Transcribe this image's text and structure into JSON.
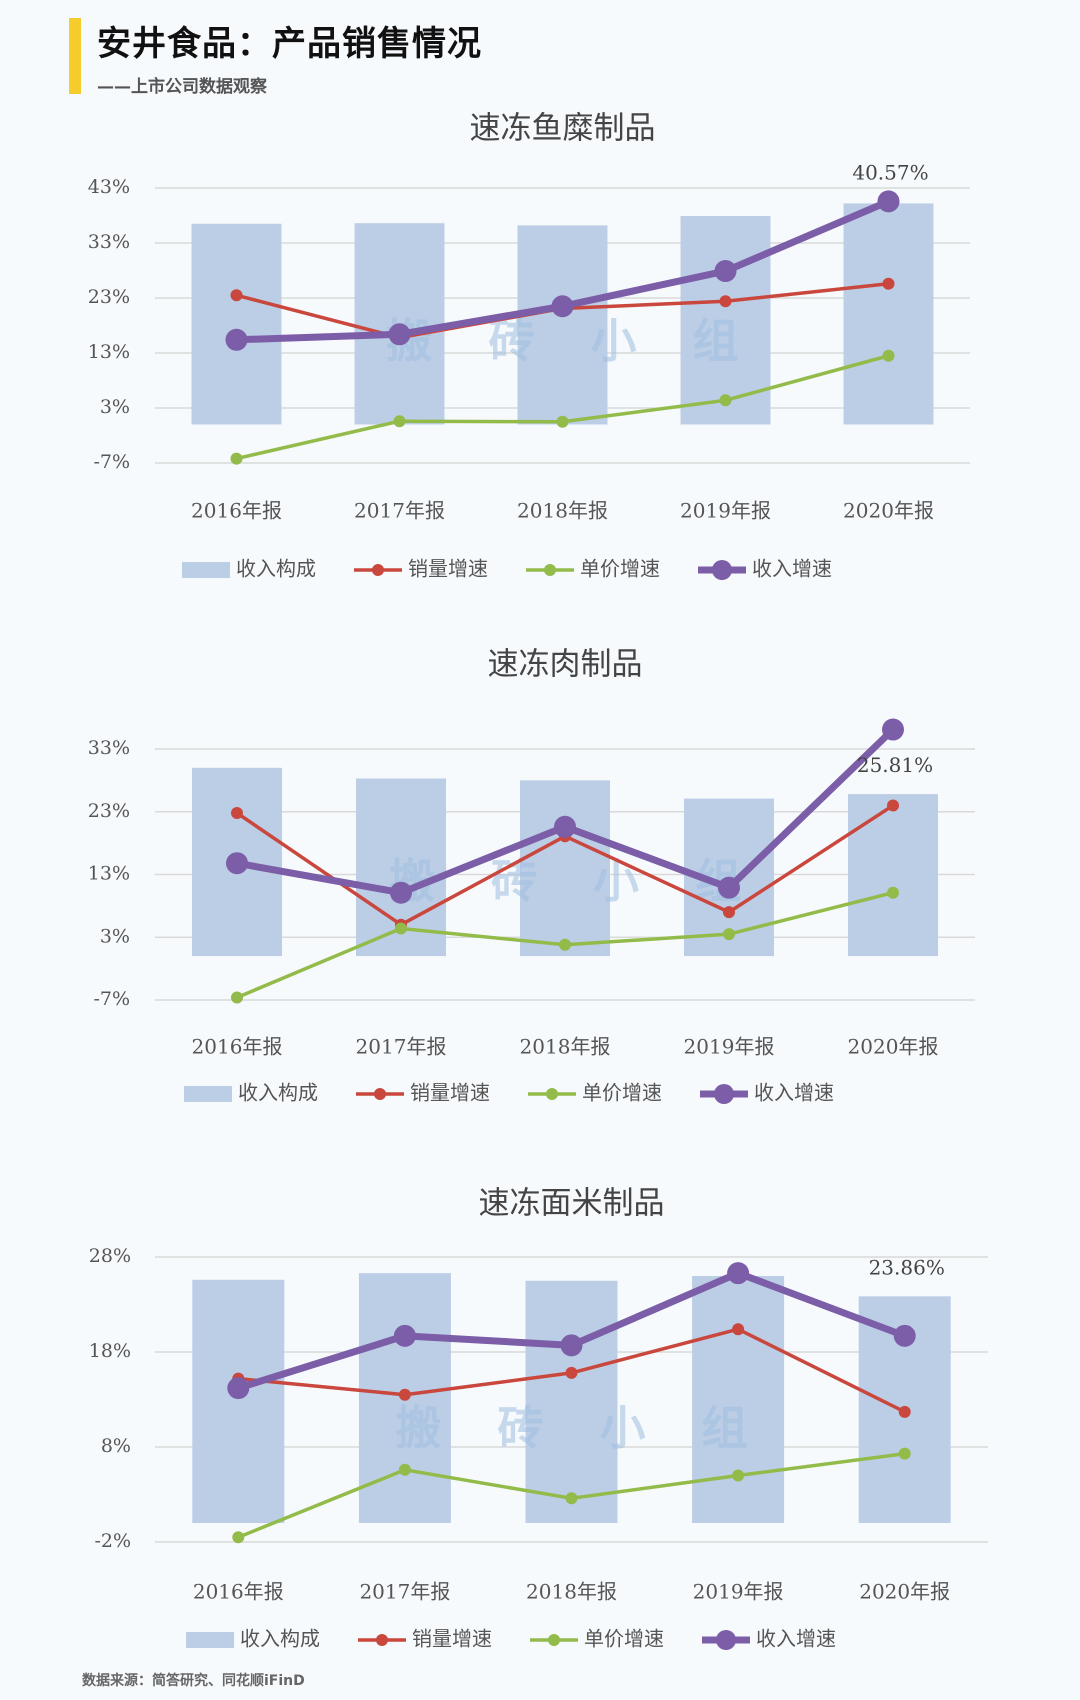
{
  "header": {
    "title": "安井食品：产品销售情况",
    "subtitle": "——上市公司数据观察"
  },
  "watermark": "搬 砖 小 组",
  "source": "数据来源：简答研究、同花顺iFinD",
  "colors": {
    "bar": "#bccde6",
    "volume": "#c9473d",
    "price": "#93bb4a",
    "revenue": "#7b5ea7",
    "accent": "#f5cc2b",
    "grid": "#d9d9d9"
  },
  "chart_data": [
    {
      "type": "bar",
      "title": "速冻鱼糜制品",
      "categories": [
        "2016年报",
        "2017年报",
        "2018年报",
        "2019年报",
        "2020年报"
      ],
      "yticks": [
        43,
        33,
        23,
        13,
        3,
        -7
      ],
      "ylim": [
        -7,
        43
      ],
      "bar_base": 0,
      "series": [
        {
          "name": "收入构成",
          "kind": "bar",
          "values": [
            36.5,
            36.6,
            36.2,
            37.9,
            40.2
          ]
        },
        {
          "name": "销量增速",
          "kind": "line",
          "values": [
            23.5,
            15.8,
            21.1,
            22.4,
            25.6
          ]
        },
        {
          "name": "单价增速",
          "kind": "line",
          "values": [
            -6.2,
            0.6,
            0.5,
            4.4,
            12.5
          ]
        },
        {
          "name": "收入增速",
          "kind": "line-bold",
          "values": [
            15.4,
            16.4,
            21.5,
            27.9,
            40.57
          ]
        }
      ],
      "annotation": {
        "text": "40.57%",
        "series": 3,
        "index": 4
      }
    },
    {
      "type": "bar",
      "title": "速冻肉制品",
      "categories": [
        "2016年报",
        "2017年报",
        "2018年报",
        "2019年报",
        "2020年报"
      ],
      "yticks": [
        33,
        23,
        13,
        3,
        -7
      ],
      "ylim": [
        -7,
        33
      ],
      "bar_base": 0,
      "series": [
        {
          "name": "收入构成",
          "kind": "bar",
          "values": [
            30.0,
            28.3,
            28.0,
            25.1,
            25.81
          ]
        },
        {
          "name": "销量增速",
          "kind": "line",
          "values": [
            22.8,
            5.0,
            19.1,
            7.0,
            24.0
          ]
        },
        {
          "name": "单价增速",
          "kind": "line",
          "values": [
            -6.6,
            4.4,
            1.8,
            3.5,
            10.1
          ]
        },
        {
          "name": "收入增速",
          "kind": "line-bold",
          "values": [
            14.8,
            10.1,
            20.6,
            10.9,
            36.1
          ]
        }
      ],
      "annotation": {
        "text": "25.81%",
        "series": 0,
        "index": 4
      }
    },
    {
      "type": "bar",
      "title": "速冻面米制品",
      "categories": [
        "2016年报",
        "2017年报",
        "2018年报",
        "2019年报",
        "2020年报"
      ],
      "yticks": [
        28,
        18,
        8,
        -2
      ],
      "ylim": [
        -2,
        28
      ],
      "bar_base": 0,
      "series": [
        {
          "name": "收入构成",
          "kind": "bar",
          "values": [
            25.6,
            26.3,
            25.5,
            26.0,
            23.86
          ]
        },
        {
          "name": "销量增速",
          "kind": "line",
          "values": [
            15.2,
            13.5,
            15.8,
            20.4,
            11.7
          ]
        },
        {
          "name": "单价增速",
          "kind": "line",
          "values": [
            -1.5,
            5.6,
            2.6,
            5.0,
            7.3
          ]
        },
        {
          "name": "收入增速",
          "kind": "line-bold",
          "values": [
            14.2,
            19.7,
            18.7,
            26.3,
            19.7
          ]
        }
      ],
      "annotation": {
        "text": "23.86%",
        "series": 0,
        "index": 4
      }
    }
  ]
}
